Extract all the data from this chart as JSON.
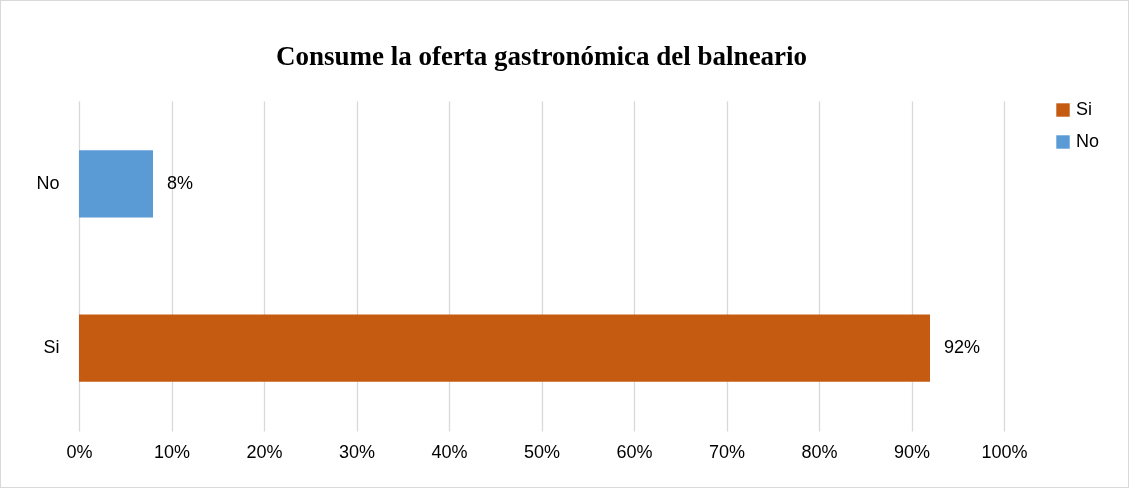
{
  "chart_data": {
    "type": "bar",
    "orientation": "horizontal",
    "title": "Consume la oferta gastronómica del balneario",
    "categories": [
      "No",
      "Si"
    ],
    "series": [
      {
        "name": "Si",
        "color": "#c55a11",
        "values": [
          null,
          92
        ],
        "value_labels": [
          null,
          "92%"
        ]
      },
      {
        "name": "No",
        "color": "#5b9bd5",
        "values": [
          8,
          null
        ],
        "value_labels": [
          "8%",
          null
        ]
      }
    ],
    "xlim": [
      0,
      100
    ],
    "xticks": [
      {
        "value": 0,
        "label": "0%"
      },
      {
        "value": 10,
        "label": "10%"
      },
      {
        "value": 20,
        "label": "20%"
      },
      {
        "value": 30,
        "label": "30%"
      },
      {
        "value": 40,
        "label": "40%"
      },
      {
        "value": 50,
        "label": "50%"
      },
      {
        "value": 60,
        "label": "60%"
      },
      {
        "value": 70,
        "label": "70%"
      },
      {
        "value": 80,
        "label": "80%"
      },
      {
        "value": 90,
        "label": "90%"
      },
      {
        "value": 100,
        "label": "100%"
      }
    ],
    "grid": "x",
    "legend": "right"
  }
}
